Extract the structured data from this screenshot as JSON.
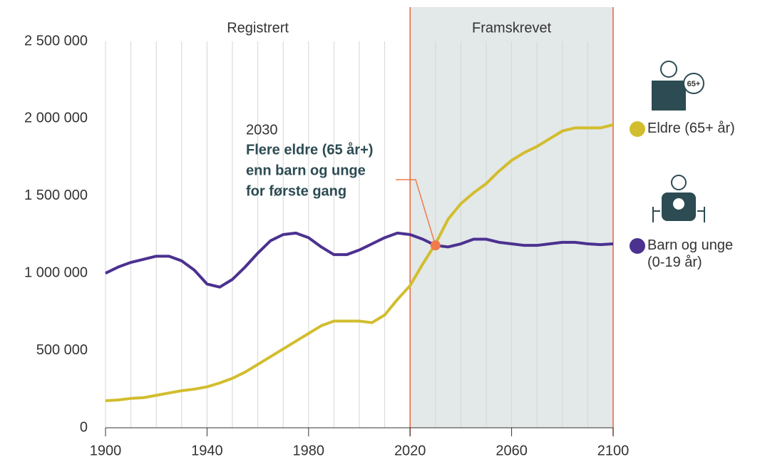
{
  "chart_data": {
    "type": "line",
    "x": [
      1900,
      1905,
      1910,
      1915,
      1920,
      1925,
      1930,
      1935,
      1940,
      1945,
      1950,
      1955,
      1960,
      1965,
      1970,
      1975,
      1980,
      1985,
      1990,
      1995,
      2000,
      2005,
      2010,
      2015,
      2020,
      2025,
      2030,
      2035,
      2040,
      2045,
      2050,
      2055,
      2060,
      2065,
      2070,
      2075,
      2080,
      2085,
      2090,
      2095,
      2100
    ],
    "series": [
      {
        "name": "Eldre (65+ år)",
        "color": "#d2bd2e",
        "values": [
          175000,
          180000,
          190000,
          195000,
          210000,
          225000,
          240000,
          250000,
          265000,
          290000,
          320000,
          360000,
          410000,
          460000,
          510000,
          560000,
          610000,
          660000,
          690000,
          690000,
          690000,
          680000,
          730000,
          830000,
          920000,
          1060000,
          1190000,
          1350000,
          1450000,
          1520000,
          1580000,
          1660000,
          1730000,
          1780000,
          1820000,
          1870000,
          1920000,
          1940000,
          1940000,
          1940000,
          1960000
        ]
      },
      {
        "name": "Barn og unge (0-19 år)",
        "color": "#4b3190",
        "values": [
          1000000,
          1040000,
          1070000,
          1090000,
          1110000,
          1110000,
          1080000,
          1020000,
          930000,
          910000,
          960000,
          1040000,
          1130000,
          1210000,
          1250000,
          1260000,
          1230000,
          1170000,
          1120000,
          1120000,
          1150000,
          1190000,
          1230000,
          1260000,
          1250000,
          1220000,
          1180000,
          1170000,
          1190000,
          1220000,
          1220000,
          1200000,
          1190000,
          1180000,
          1180000,
          1190000,
          1200000,
          1200000,
          1190000,
          1185000,
          1190000
        ]
      }
    ],
    "xlim": [
      1900,
      2100
    ],
    "xticks": [
      1900,
      1940,
      1980,
      2020,
      2060,
      2100
    ],
    "ylim": [
      0,
      2500000
    ],
    "yticks": [
      0,
      {
        "value": 500000,
        "label": "500 000"
      },
      {
        "value": 1000000,
        "label": "1 000 000"
      },
      {
        "value": 1500000,
        "label": "1 500 000"
      },
      {
        "value": 2000000,
        "label": "2 000 000"
      },
      {
        "value": 2500000,
        "label": "2 500 000"
      }
    ],
    "grid": {
      "x_step": 10
    },
    "periods": [
      {
        "label": "Registrert",
        "start": 1900,
        "end": 2020,
        "shaded": false
      },
      {
        "label": "Framskrevet",
        "start": 2020,
        "end": 2100,
        "shaded": true
      }
    ],
    "annotation": {
      "x": 2030,
      "y": 1180000,
      "color": "#f07a4a",
      "lines": [
        "Flere eldre (65 år+)",
        "enn barn og unge",
        "for første gang"
      ]
    },
    "legend": "right"
  }
}
